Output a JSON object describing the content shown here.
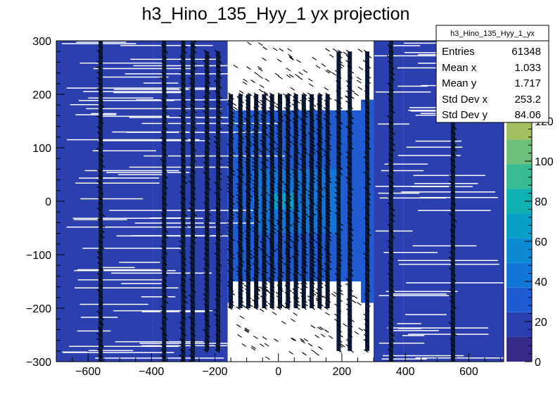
{
  "chart_data": {
    "type": "heatmap",
    "title": "h3_Hino_135_Hyy_1 yx projection",
    "xlabel": "",
    "ylabel": "",
    "xlim": [
      -700,
      710
    ],
    "ylim": [
      -300,
      300
    ],
    "x_ticks": [
      -600,
      -400,
      -200,
      0,
      200,
      400,
      600
    ],
    "x_tick_labels": [
      "−600",
      "−400",
      "−200",
      "0",
      "200",
      "400",
      "600"
    ],
    "y_ticks": [
      -300,
      -200,
      -100,
      0,
      100,
      200,
      300
    ],
    "y_tick_labels": [
      "−300",
      "−200",
      "−100",
      "0",
      "100",
      "200",
      "300"
    ],
    "z_range": [
      0,
      160
    ],
    "z_ticks": [
      0,
      20,
      40,
      60,
      80,
      100,
      120
    ],
    "z_tick_labels": [
      "0",
      "20",
      "40",
      "60",
      "80",
      "100",
      "120"
    ],
    "palette": [
      "#352a87",
      "#2b3fae",
      "#1f5bd3",
      "#1275d8",
      "#0c8bd4",
      "#08a0c6",
      "#10b1b0",
      "#38bb95",
      "#6cc07a",
      "#a3bf62",
      "#d2b94e",
      "#f4c63a",
      "#f9e026"
    ],
    "stripe_x_positions": [
      -560,
      -360,
      -300,
      -270,
      -225,
      -190,
      -150,
      -120,
      -95,
      -70,
      -45,
      -20,
      5,
      30,
      55,
      80,
      105,
      130,
      155,
      190,
      225,
      280,
      355,
      550
    ],
    "blue_band_x_ranges": [
      [
        -700,
        -395
      ],
      [
        -395,
        -300
      ],
      [
        -300,
        -160
      ],
      [
        300,
        395
      ],
      [
        395,
        710
      ]
    ],
    "stats": {
      "title": "h3_Hino_135_Hyy_1_yx",
      "rows": [
        {
          "label": "Entries",
          "value": "61348"
        },
        {
          "label": "Mean x",
          "value": "1.033"
        },
        {
          "label": "Mean y",
          "value": "1.717"
        },
        {
          "label": "Std Dev x",
          "value": "253.2"
        },
        {
          "label": "Std Dev y",
          "value": "84.06"
        }
      ]
    }
  }
}
